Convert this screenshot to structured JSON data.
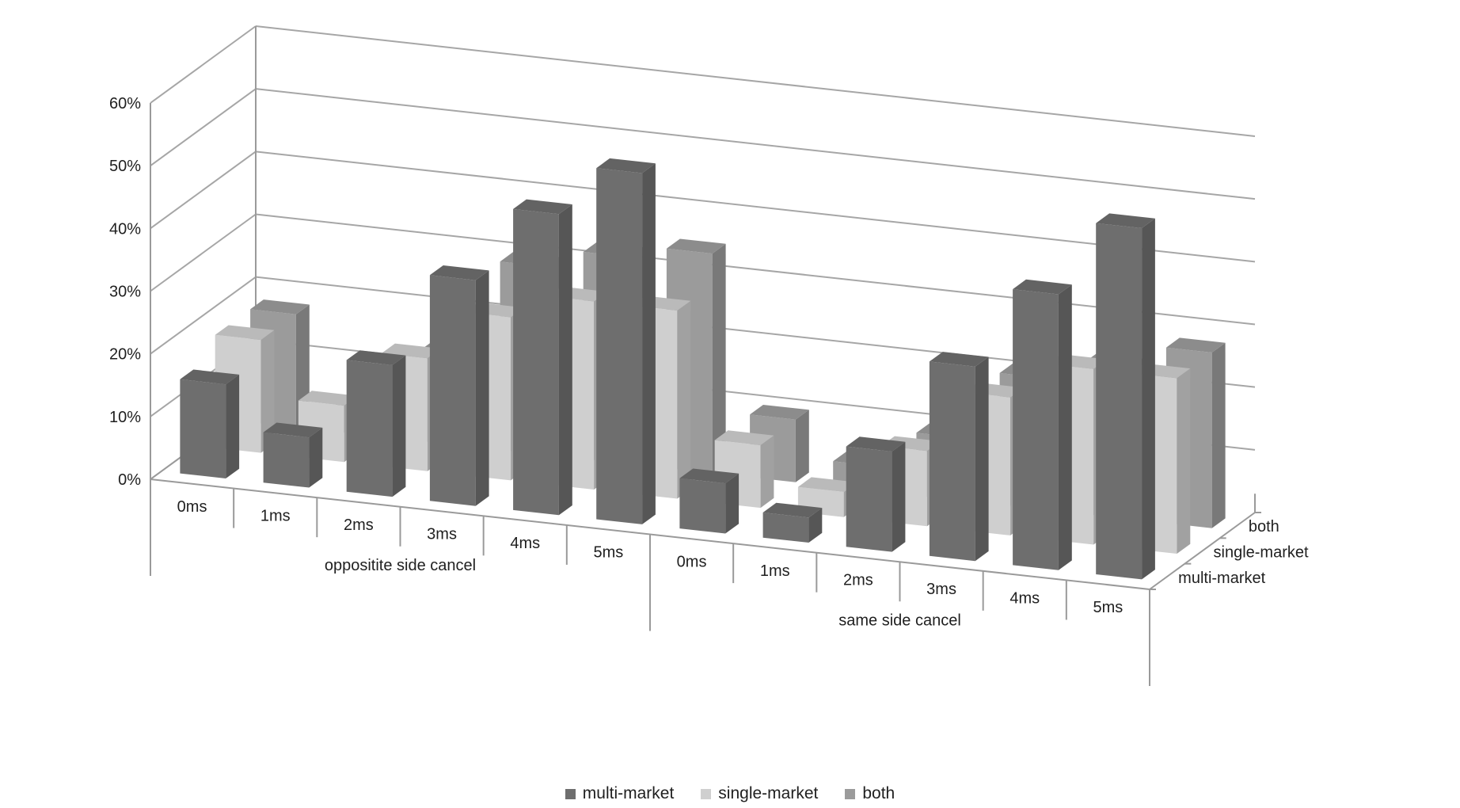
{
  "chart_data": {
    "type": "bar",
    "chart_style": "3d-clustered-bar",
    "groups": [
      {
        "label": "oppositite side cancel",
        "categories": [
          "0ms",
          "1ms",
          "2ms",
          "3ms",
          "4ms",
          "5ms"
        ]
      },
      {
        "label": "same side cancel",
        "categories": [
          "0ms",
          "1ms",
          "2ms",
          "3ms",
          "4ms",
          "5ms"
        ]
      }
    ],
    "categories": [
      "0ms",
      "1ms",
      "2ms",
      "3ms",
      "4ms",
      "5ms",
      "0ms",
      "1ms",
      "2ms",
      "3ms",
      "4ms",
      "5ms"
    ],
    "series": [
      {
        "name": "multi-market",
        "color": "#6e6e6e",
        "values": [
          15,
          8,
          21,
          36,
          48,
          56,
          8,
          4,
          16,
          31,
          44,
          56
        ]
      },
      {
        "name": "single-market",
        "color": "#cfcfcf",
        "values": [
          18,
          9,
          18,
          26,
          30,
          30,
          10,
          4,
          12,
          22,
          28,
          28
        ]
      },
      {
        "name": "both",
        "color": "#9b9b9b",
        "values": [
          18,
          4,
          14,
          30,
          33,
          35,
          10,
          4,
          10,
          21,
          24,
          28
        ]
      }
    ],
    "yaxis": {
      "ticks": [
        "0%",
        "10%",
        "20%",
        "30%",
        "40%",
        "50%",
        "60%"
      ],
      "ylim": [
        0,
        60
      ],
      "unit": "%"
    },
    "depth_axis_labels": [
      "both",
      "single-market",
      "multi-market"
    ],
    "grid": true,
    "legend": {
      "position": "bottom",
      "entries": [
        "multi-market",
        "single-market",
        "both"
      ]
    }
  }
}
